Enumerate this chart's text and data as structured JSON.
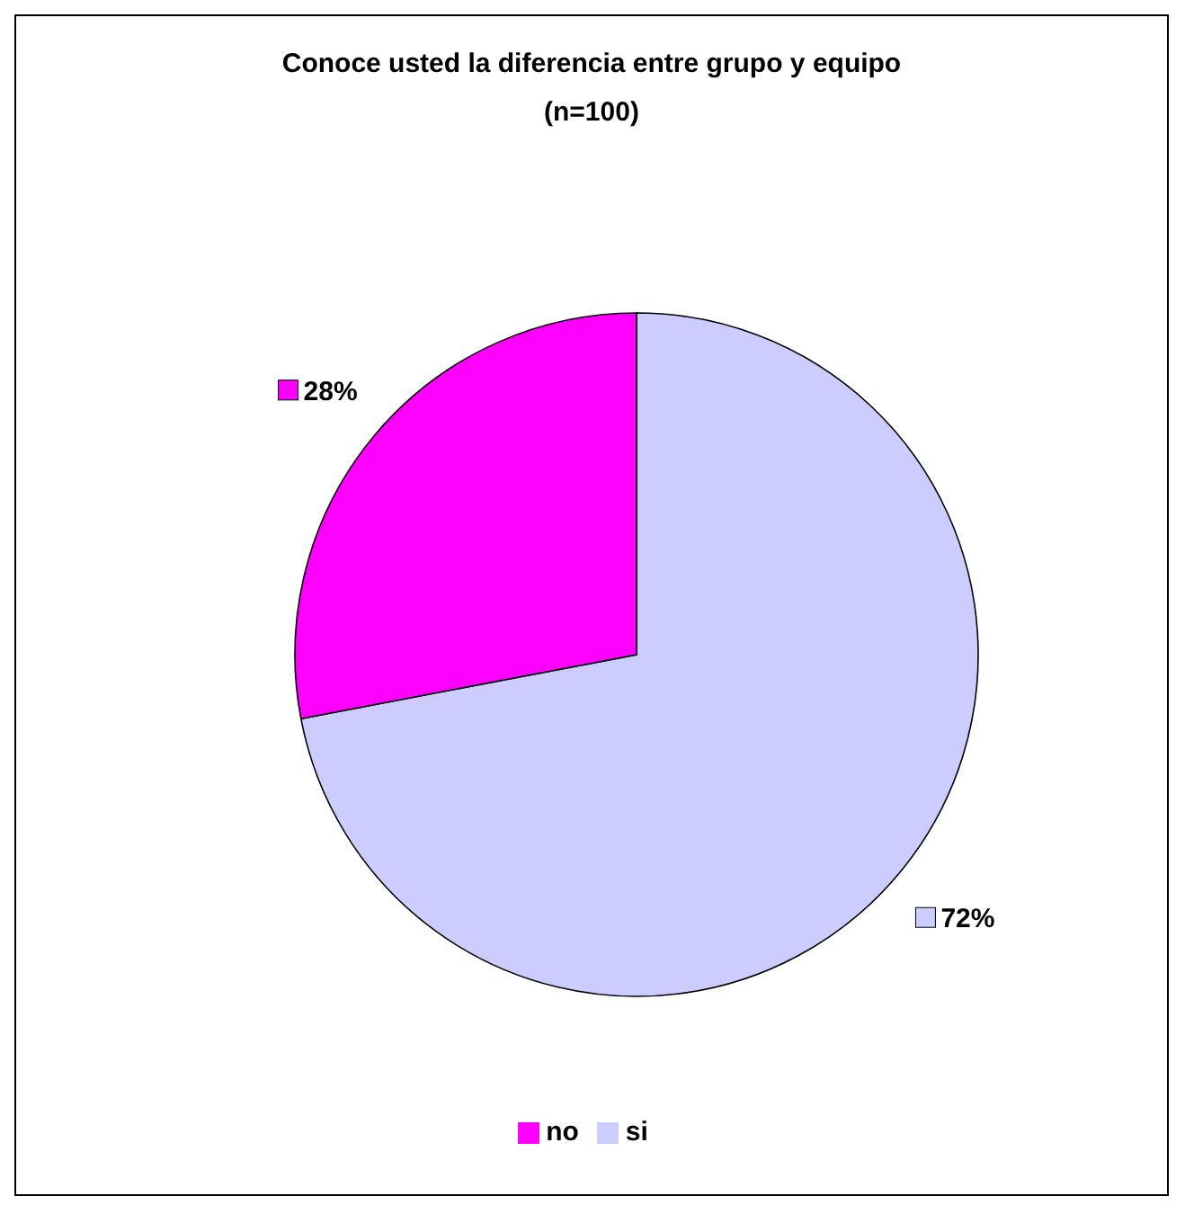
{
  "chart_data": {
    "type": "pie",
    "title": "Conoce usted la diferencia entre grupo y equipo",
    "subtitle": "(n=100)",
    "categories": [
      "si",
      "no"
    ],
    "values": [
      72,
      28
    ],
    "colors": [
      "#ccccff",
      "#ff00ff"
    ],
    "value_labels": [
      "72%",
      "28%"
    ],
    "legend": "bottom"
  }
}
